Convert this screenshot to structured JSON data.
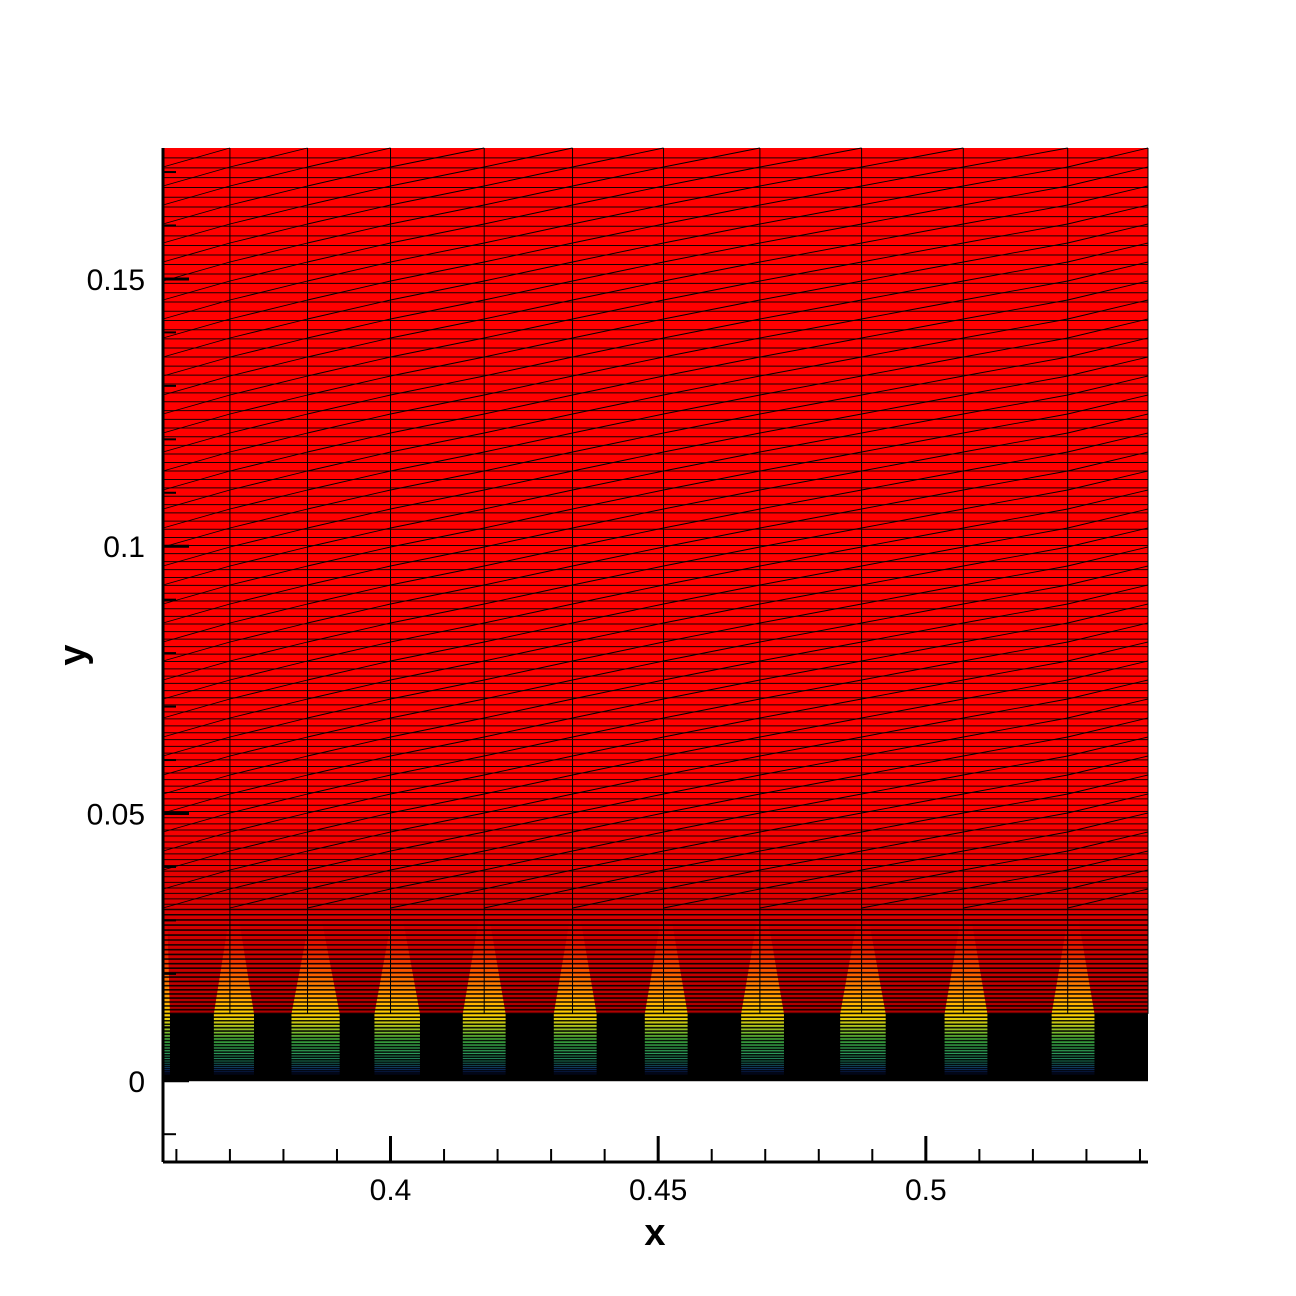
{
  "chart_data": {
    "type": "heatmap",
    "xlabel": "x",
    "ylabel": "y",
    "xlim": [
      0.3575,
      0.5415
    ],
    "ylim": [
      -0.0152,
      0.1745
    ],
    "data_xlim": [
      0.3575,
      0.5415
    ],
    "data_ylim": [
      0,
      0.1745
    ],
    "x_major_ticks": [
      0.4,
      0.45,
      0.5
    ],
    "x_tick_labels": [
      "0.4",
      "0.45",
      "0.5"
    ],
    "x_minor_ticks": [
      0.36,
      0.37,
      0.38,
      0.39,
      0.41,
      0.42,
      0.43,
      0.44,
      0.46,
      0.47,
      0.48,
      0.49,
      0.51,
      0.52,
      0.53,
      0.54
    ],
    "y_major_ticks": [
      0,
      0.05,
      0.1,
      0.15
    ],
    "y_tick_labels": [
      "0",
      "0.05",
      "0.1",
      "0.15"
    ],
    "y_minor_ticks": [
      -0.01,
      0.01,
      0.02,
      0.03,
      0.04,
      0.06,
      0.07,
      0.08,
      0.09,
      0.11,
      0.12,
      0.13,
      0.14,
      0.16,
      0.17
    ],
    "plumes": [
      {
        "x_start": 0.3575,
        "x_end": 0.3588
      },
      {
        "x_start": 0.367,
        "x_end": 0.3745
      },
      {
        "x_start": 0.3815,
        "x_end": 0.3905
      },
      {
        "x_start": 0.397,
        "x_end": 0.4055
      },
      {
        "x_start": 0.4135,
        "x_end": 0.4215
      },
      {
        "x_start": 0.4305,
        "x_end": 0.4385
      },
      {
        "x_start": 0.4475,
        "x_end": 0.4555
      },
      {
        "x_start": 0.4655,
        "x_end": 0.4735
      },
      {
        "x_start": 0.484,
        "x_end": 0.4925
      },
      {
        "x_start": 0.5035,
        "x_end": 0.5115
      },
      {
        "x_start": 0.5235,
        "x_end": 0.5315
      }
    ],
    "plume_top_y": 0.0305,
    "black_layer_top_y": 0.0125,
    "mesh_x_lines": [
      0.37,
      0.3845,
      0.4,
      0.4175,
      0.434,
      0.451,
      0.469,
      0.488,
      0.507,
      0.5265,
      0.5415
    ],
    "colors": {
      "freestream": "#ff0000",
      "near_wall": "#000000",
      "plume_mid": "#ffd200",
      "plume_low": "#40b040",
      "plume_wall": "#1a3cff",
      "mesh_line": "#000000"
    },
    "grid": false
  }
}
